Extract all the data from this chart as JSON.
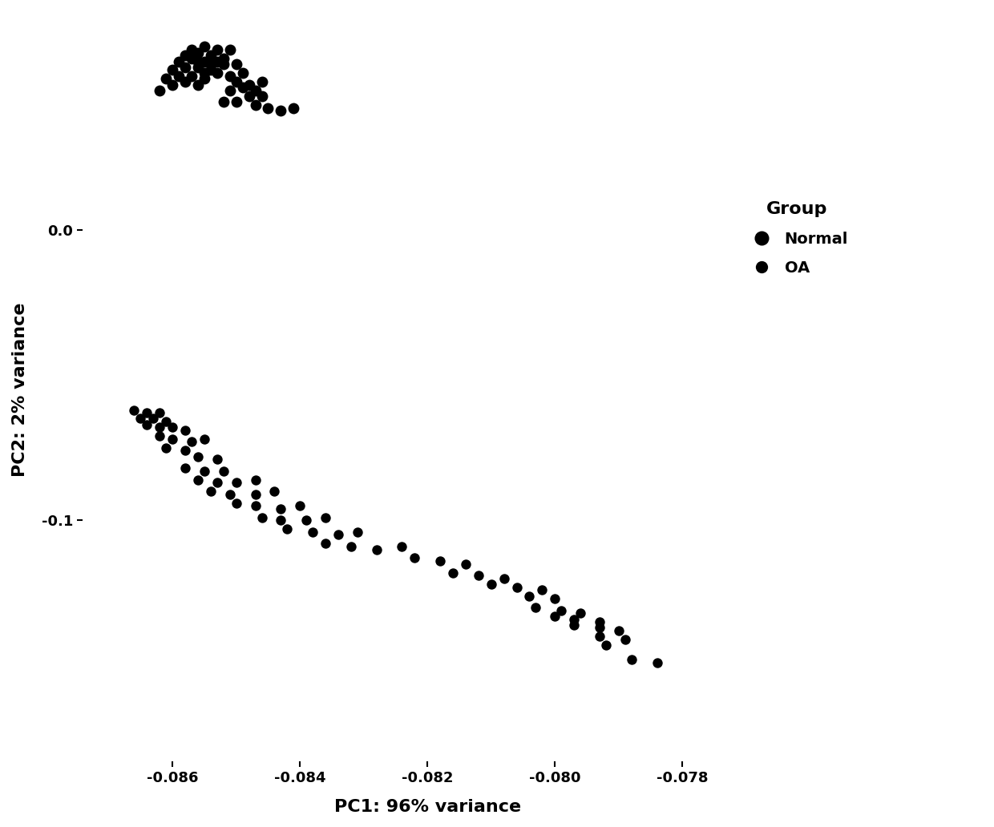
{
  "xlabel": "PC1: 96% variance",
  "ylabel": "PC2: 2% variance",
  "legend_title": "Group",
  "legend_entries": [
    "Normal",
    "OA"
  ],
  "marker_color": "#000000",
  "background_color": "#ffffff",
  "xlim": [
    -0.0875,
    -0.0765
  ],
  "ylim": [
    -0.185,
    0.075
  ],
  "xticks": [
    -0.086,
    -0.084,
    -0.082,
    -0.08,
    -0.078
  ],
  "yticks": [
    0.0,
    -0.1
  ],
  "normal_points": [
    [
      -0.0862,
      0.048
    ],
    [
      -0.086,
      0.05
    ],
    [
      -0.0858,
      0.051
    ],
    [
      -0.0856,
      0.05
    ],
    [
      -0.0861,
      0.052
    ],
    [
      -0.0859,
      0.053
    ],
    [
      -0.0857,
      0.053
    ],
    [
      -0.0855,
      0.052
    ],
    [
      -0.086,
      0.055
    ],
    [
      -0.0858,
      0.056
    ],
    [
      -0.0856,
      0.056
    ],
    [
      -0.0854,
      0.055
    ],
    [
      -0.0859,
      0.058
    ],
    [
      -0.0857,
      0.059
    ],
    [
      -0.0855,
      0.058
    ],
    [
      -0.0853,
      0.058
    ],
    [
      -0.0858,
      0.06
    ],
    [
      -0.0856,
      0.061
    ],
    [
      -0.0854,
      0.06
    ],
    [
      -0.0852,
      0.059
    ],
    [
      -0.0857,
      0.062
    ],
    [
      -0.0855,
      0.063
    ],
    [
      -0.0853,
      0.062
    ],
    [
      -0.0851,
      0.062
    ],
    [
      -0.0856,
      0.058
    ],
    [
      -0.0854,
      0.057
    ],
    [
      -0.0852,
      0.057
    ],
    [
      -0.085,
      0.057
    ],
    [
      -0.0855,
      0.054
    ],
    [
      -0.0853,
      0.054
    ],
    [
      -0.0851,
      0.053
    ],
    [
      -0.0849,
      0.054
    ],
    [
      -0.085,
      0.051
    ],
    [
      -0.0848,
      0.05
    ],
    [
      -0.0846,
      0.051
    ],
    [
      -0.0851,
      0.048
    ],
    [
      -0.0849,
      0.049
    ],
    [
      -0.0847,
      0.048
    ],
    [
      -0.0848,
      0.046
    ],
    [
      -0.0846,
      0.046
    ],
    [
      -0.0852,
      0.044
    ],
    [
      -0.085,
      0.044
    ],
    [
      -0.0847,
      0.043
    ],
    [
      -0.0845,
      0.042
    ],
    [
      -0.0843,
      0.041
    ],
    [
      -0.0841,
      0.042
    ]
  ],
  "oa_points": [
    [
      -0.0866,
      -0.062
    ],
    [
      -0.0864,
      -0.063
    ],
    [
      -0.0862,
      -0.063
    ],
    [
      -0.0865,
      -0.065
    ],
    [
      -0.0863,
      -0.065
    ],
    [
      -0.0861,
      -0.066
    ],
    [
      -0.0864,
      -0.067
    ],
    [
      -0.0862,
      -0.068
    ],
    [
      -0.086,
      -0.068
    ],
    [
      -0.0858,
      -0.069
    ],
    [
      -0.0862,
      -0.071
    ],
    [
      -0.086,
      -0.072
    ],
    [
      -0.0857,
      -0.073
    ],
    [
      -0.0855,
      -0.072
    ],
    [
      -0.0861,
      -0.075
    ],
    [
      -0.0858,
      -0.076
    ],
    [
      -0.0856,
      -0.078
    ],
    [
      -0.0853,
      -0.079
    ],
    [
      -0.0858,
      -0.082
    ],
    [
      -0.0855,
      -0.083
    ],
    [
      -0.0852,
      -0.083
    ],
    [
      -0.0856,
      -0.086
    ],
    [
      -0.0853,
      -0.087
    ],
    [
      -0.085,
      -0.087
    ],
    [
      -0.0847,
      -0.086
    ],
    [
      -0.0854,
      -0.09
    ],
    [
      -0.0851,
      -0.091
    ],
    [
      -0.0847,
      -0.091
    ],
    [
      -0.0844,
      -0.09
    ],
    [
      -0.085,
      -0.094
    ],
    [
      -0.0847,
      -0.095
    ],
    [
      -0.0843,
      -0.096
    ],
    [
      -0.084,
      -0.095
    ],
    [
      -0.0846,
      -0.099
    ],
    [
      -0.0843,
      -0.1
    ],
    [
      -0.0839,
      -0.1
    ],
    [
      -0.0836,
      -0.099
    ],
    [
      -0.0842,
      -0.103
    ],
    [
      -0.0838,
      -0.104
    ],
    [
      -0.0834,
      -0.105
    ],
    [
      -0.0831,
      -0.104
    ],
    [
      -0.0836,
      -0.108
    ],
    [
      -0.0832,
      -0.109
    ],
    [
      -0.0828,
      -0.11
    ],
    [
      -0.0824,
      -0.109
    ],
    [
      -0.0822,
      -0.113
    ],
    [
      -0.0818,
      -0.114
    ],
    [
      -0.0814,
      -0.115
    ],
    [
      -0.0816,
      -0.118
    ],
    [
      -0.0812,
      -0.119
    ],
    [
      -0.0808,
      -0.12
    ],
    [
      -0.081,
      -0.122
    ],
    [
      -0.0806,
      -0.123
    ],
    [
      -0.0802,
      -0.124
    ],
    [
      -0.0804,
      -0.126
    ],
    [
      -0.08,
      -0.127
    ],
    [
      -0.0803,
      -0.13
    ],
    [
      -0.0799,
      -0.131
    ],
    [
      -0.0796,
      -0.132
    ],
    [
      -0.08,
      -0.133
    ],
    [
      -0.0797,
      -0.134
    ],
    [
      -0.0793,
      -0.135
    ],
    [
      -0.0797,
      -0.136
    ],
    [
      -0.0793,
      -0.137
    ],
    [
      -0.079,
      -0.138
    ],
    [
      -0.0793,
      -0.14
    ],
    [
      -0.0789,
      -0.141
    ],
    [
      -0.0792,
      -0.143
    ],
    [
      -0.0788,
      -0.148
    ],
    [
      -0.0784,
      -0.149
    ]
  ]
}
